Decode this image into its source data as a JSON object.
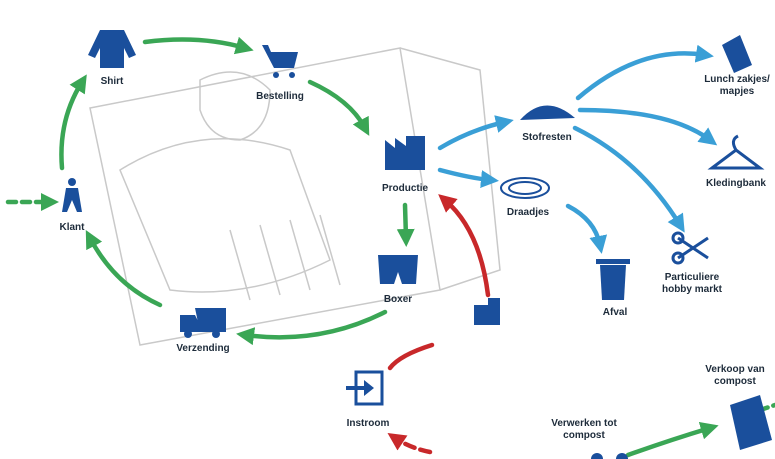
{
  "nodes": [
    {
      "label": [
        "Shirt"
      ]
    },
    {
      "label": [
        "Bestelling"
      ]
    },
    {
      "label": [
        "Productie"
      ]
    },
    {
      "label": [
        "Boxer"
      ]
    },
    {
      "label": [
        "Verzending"
      ]
    },
    {
      "label": [
        "Klant"
      ]
    },
    {
      "label": [
        "Stofresten"
      ]
    },
    {
      "label": [
        "Draadjes"
      ]
    },
    {
      "label": [
        "Lunch zakjes/",
        "mapjes"
      ]
    },
    {
      "label": [
        "Kledingbank"
      ]
    },
    {
      "label": [
        "Particuliere",
        "hobby markt"
      ]
    },
    {
      "label": [
        "Afval"
      ]
    },
    {
      "label": [
        "Instroom"
      ]
    },
    {
      "label": [
        "Verwerken tot",
        "compost"
      ]
    },
    {
      "label": [
        "Verkoop van",
        "compost"
      ]
    }
  ]
}
